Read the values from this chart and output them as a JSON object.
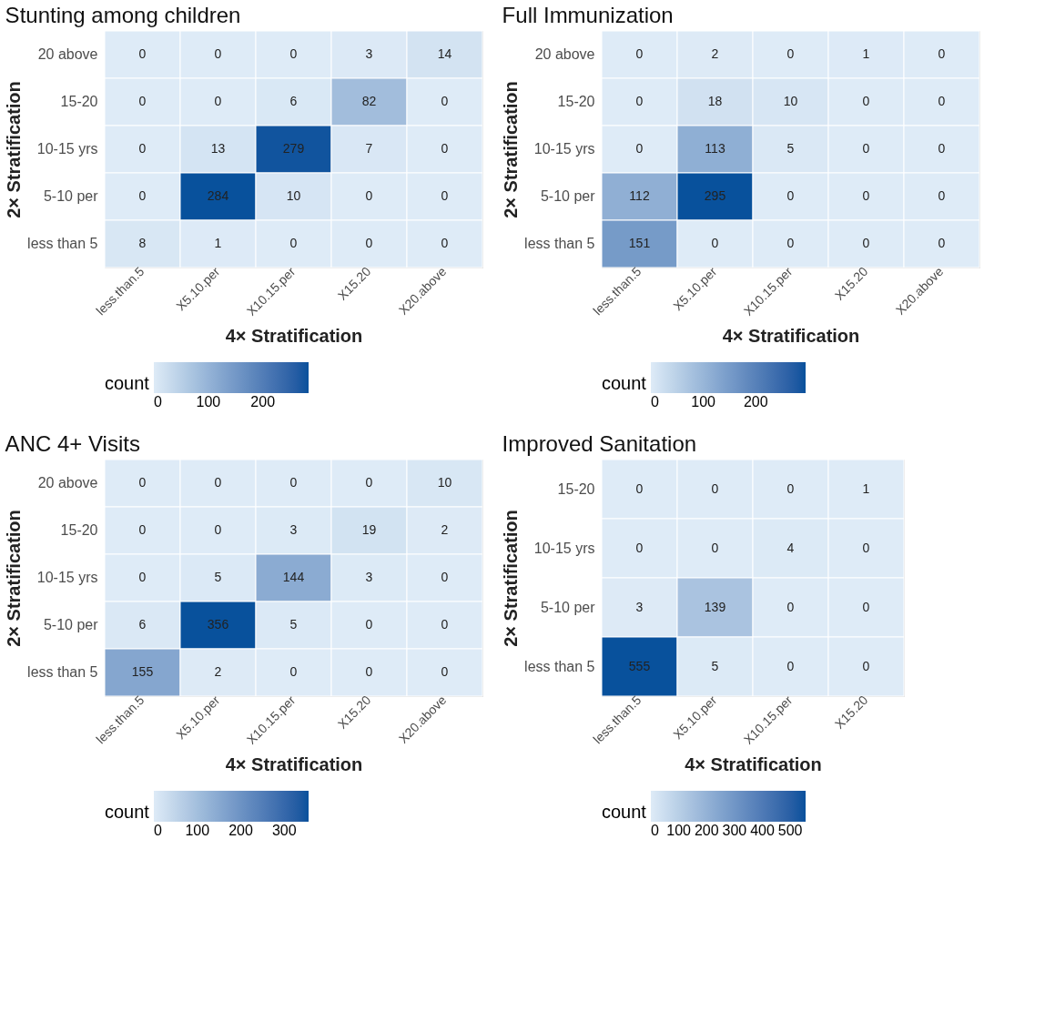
{
  "chart_data": [
    {
      "type": "heatmap",
      "title": "Stunting among children",
      "xlabel": "4× Stratification",
      "ylabel": "2× Stratification",
      "clabel": "count",
      "categories": [
        "less.than.5",
        "X5.10.per",
        "X10.15.per",
        "X15.20",
        "X20.above"
      ],
      "y_categories": [
        "20 above",
        "15-20",
        "10-15 yrs",
        "5-10 per",
        "less than 5"
      ],
      "cells": [
        [
          0,
          0,
          0,
          3,
          14
        ],
        [
          0,
          0,
          6,
          82,
          0
        ],
        [
          0,
          13,
          279,
          7,
          0
        ],
        [
          0,
          284,
          10,
          0,
          0
        ],
        [
          8,
          1,
          0,
          0,
          0
        ]
      ],
      "clim": [
        0,
        284
      ],
      "cticks": [
        0,
        100,
        200
      ],
      "data_labels": true
    },
    {
      "type": "heatmap",
      "title": "Full Immunization",
      "xlabel": "4× Stratification",
      "ylabel": "2× Stratification",
      "clabel": "count",
      "categories": [
        "less.than.5",
        "X5.10.per",
        "X10.15.per",
        "X15.20",
        "X20.above"
      ],
      "y_categories": [
        "20 above",
        "15-20",
        "10-15 yrs",
        "5-10 per",
        "less than 5"
      ],
      "cells": [
        [
          0,
          2,
          0,
          1,
          0
        ],
        [
          0,
          18,
          10,
          0,
          0
        ],
        [
          0,
          113,
          5,
          0,
          0
        ],
        [
          112,
          295,
          0,
          0,
          0
        ],
        [
          151,
          0,
          0,
          0,
          0
        ]
      ],
      "clim": [
        0,
        295
      ],
      "cticks": [
        0,
        100,
        200
      ],
      "data_labels": true
    },
    {
      "type": "heatmap",
      "title": "ANC 4+ Visits",
      "xlabel": "4× Stratification",
      "ylabel": "2× Stratification",
      "clabel": "count",
      "categories": [
        "less.than.5",
        "X5.10.per",
        "X10.15.per",
        "X15.20",
        "X20.above"
      ],
      "y_categories": [
        "20 above",
        "15-20",
        "10-15 yrs",
        "5-10 per",
        "less than 5"
      ],
      "cells": [
        [
          0,
          0,
          0,
          0,
          10
        ],
        [
          0,
          0,
          3,
          19,
          2
        ],
        [
          0,
          5,
          144,
          3,
          0
        ],
        [
          6,
          356,
          5,
          0,
          0
        ],
        [
          155,
          2,
          0,
          0,
          0
        ]
      ],
      "clim": [
        0,
        356
      ],
      "cticks": [
        0,
        100,
        200,
        300
      ],
      "data_labels": true
    },
    {
      "type": "heatmap",
      "title": "Improved Sanitation",
      "xlabel": "4× Stratification",
      "ylabel": "2× Stratification",
      "clabel": "count",
      "categories": [
        "less.than.5",
        "X5.10.per",
        "X10.15.per",
        "X15.20"
      ],
      "y_categories": [
        "15-20",
        "10-15 yrs",
        "5-10 per",
        "less than 5"
      ],
      "cells": [
        [
          0,
          0,
          0,
          1
        ],
        [
          0,
          0,
          4,
          0
        ],
        [
          3,
          139,
          0,
          0
        ],
        [
          555,
          5,
          0,
          0
        ]
      ],
      "clim": [
        0,
        555
      ],
      "cticks": [
        0,
        100,
        200,
        300,
        400,
        500
      ],
      "data_labels": true
    }
  ]
}
